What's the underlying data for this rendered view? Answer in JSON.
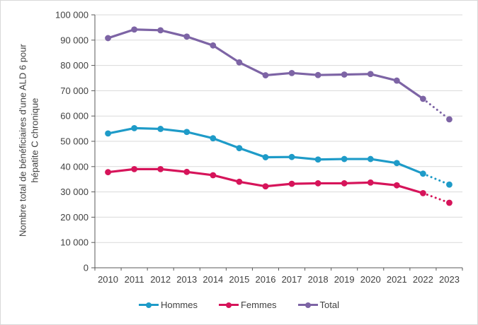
{
  "chart_data": {
    "type": "line",
    "title": "",
    "ylabel": "Nombre total de bénéficiaires d'une ALD 6 pour hépatite C chronique",
    "xlabel": "",
    "categories": [
      "2010",
      "2011",
      "2012",
      "2013",
      "2014",
      "2015",
      "2016",
      "2017",
      "2018",
      "2019",
      "2020",
      "2021",
      "2022",
      "2023"
    ],
    "y_ticks": [
      "0",
      "10 000",
      "20 000",
      "30 000",
      "40 000",
      "50 000",
      "60 000",
      "70 000",
      "80 000",
      "90 000",
      "100 000"
    ],
    "ylim": [
      0,
      100000
    ],
    "grid": "horizontal",
    "legend_position": "bottom",
    "dotted_last_segment": true,
    "series": [
      {
        "name": "Hommes",
        "color": "#1e9bc8",
        "values": [
          53100,
          55200,
          54900,
          53700,
          51200,
          47300,
          43700,
          43800,
          42800,
          43000,
          43000,
          41400,
          37200,
          32900
        ]
      },
      {
        "name": "Femmes",
        "color": "#d6145a",
        "values": [
          37800,
          39000,
          39000,
          37900,
          36600,
          34000,
          32200,
          33200,
          33400,
          33400,
          33700,
          32600,
          29500,
          25700
        ]
      },
      {
        "name": "Total",
        "color": "#7d64a5",
        "values": [
          90800,
          94200,
          93900,
          91400,
          87900,
          81200,
          76100,
          77000,
          76200,
          76400,
          76600,
          74000,
          66800,
          58700
        ]
      }
    ]
  },
  "style": {
    "gridline_color": "#dadada",
    "axis_color": "#595959",
    "text_color": "#404040"
  }
}
